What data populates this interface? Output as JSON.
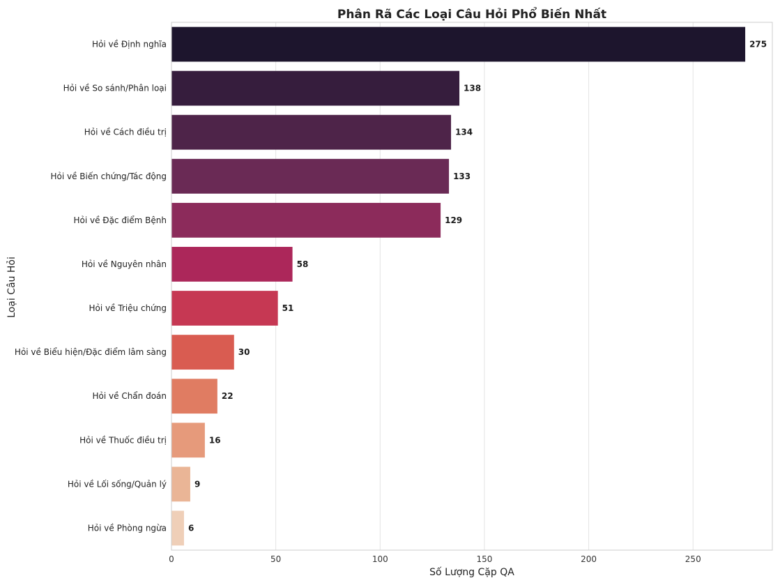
{
  "chart_data": {
    "type": "bar",
    "orientation": "horizontal",
    "title": "Phân Rã Các Loại Câu Hỏi Phổ Biến Nhất",
    "xlabel": "Số Lượng Cặp QA",
    "ylabel": "Loại Câu Hỏi",
    "xlim": [
      0,
      288
    ],
    "xticks": [
      0,
      50,
      100,
      150,
      200,
      250
    ],
    "grid": true,
    "categories": [
      "Hỏi về Định nghĩa",
      "Hỏi về So sánh/Phân loại",
      "Hỏi về Cách điều trị",
      "Hỏi về Biến chứng/Tác động",
      "Hỏi về Đặc điểm Bệnh",
      "Hỏi về Nguyên nhân",
      "Hỏi về Triệu chứng",
      "Hỏi về Biểu hiện/Đặc điểm lâm sàng",
      "Hỏi về Chẩn đoán",
      "Hỏi về Thuốc điều trị",
      "Hỏi về Lối sống/Quản lý",
      "Hỏi về Phòng ngừa"
    ],
    "values": [
      275,
      138,
      134,
      133,
      129,
      58,
      51,
      30,
      22,
      16,
      9,
      6
    ],
    "colors": [
      "#1d152d",
      "#361d3d",
      "#4e2449",
      "#6a2a55",
      "#8c2b5b",
      "#ac275a",
      "#c63853",
      "#d95c51",
      "#e07c62",
      "#e69a7b",
      "#eab596",
      "#efcfb8"
    ]
  }
}
